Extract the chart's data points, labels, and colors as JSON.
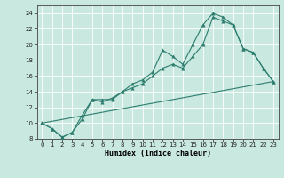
{
  "xlabel": "Humidex (Indice chaleur)",
  "xlim": [
    -0.5,
    23.5
  ],
  "ylim": [
    8,
    25
  ],
  "xticks": [
    0,
    1,
    2,
    3,
    4,
    5,
    6,
    7,
    8,
    9,
    10,
    11,
    12,
    13,
    14,
    15,
    16,
    17,
    18,
    19,
    20,
    21,
    22,
    23
  ],
  "yticks": [
    8,
    10,
    12,
    14,
    16,
    18,
    20,
    22,
    24
  ],
  "line_color": "#2d7d6e",
  "bg_color": "#c8e8e0",
  "grid_color": "#ffffff",
  "line1_x": [
    0,
    1,
    2,
    3,
    4,
    5,
    6,
    7,
    8,
    9,
    10,
    11,
    12,
    13,
    14,
    15,
    16,
    17,
    18,
    19,
    20,
    21,
    22,
    23
  ],
  "line1_y": [
    10,
    9.3,
    8.2,
    8.8,
    11,
    13,
    13,
    13,
    14,
    15,
    15.5,
    16.5,
    19.3,
    18.5,
    17.5,
    20,
    22.5,
    24,
    23.5,
    22.5,
    19.5,
    19,
    17,
    15.3
  ],
  "line2_x": [
    0,
    1,
    2,
    3,
    4,
    5,
    6,
    7,
    8,
    9,
    10,
    11,
    12,
    13,
    14,
    15,
    16,
    17,
    18,
    19,
    20,
    21,
    22,
    23
  ],
  "line2_y": [
    10,
    9.3,
    8.2,
    8.8,
    10.5,
    13,
    12.7,
    13.2,
    14,
    14.5,
    15,
    16,
    17,
    17.5,
    17,
    18.5,
    20,
    23.5,
    23,
    22.5,
    19.5,
    19,
    17,
    15.3
  ],
  "line3_x": [
    0,
    23
  ],
  "line3_y": [
    10,
    15.3
  ]
}
